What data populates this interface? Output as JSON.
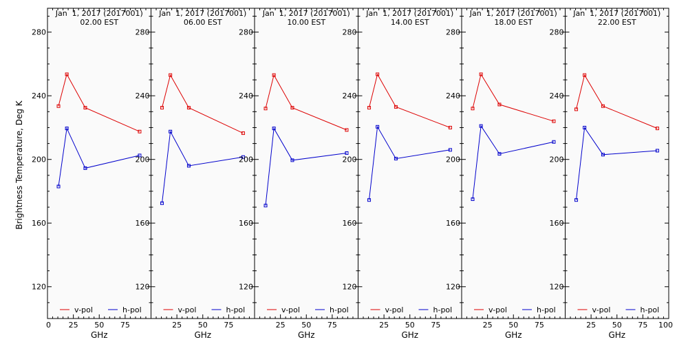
{
  "colors": {
    "background": "#ffffff",
    "panel_bg": "#fafafa",
    "v_pol": "#dd0000",
    "h_pol": "#0000cc",
    "axis": "#000000"
  },
  "ylabel": "Brightness Temperature, Deg K",
  "panels": [
    {
      "title_line1": "Jan  1, 2017 (2017001)",
      "title_line2": "02.00 EST",
      "xlabel": "GHz",
      "x_ticks": [
        "0",
        "25",
        "50",
        "75"
      ],
      "y_ticks": [
        "120",
        "160",
        "200",
        "240",
        "280"
      ],
      "legend": [
        "v-pol",
        "h-pol"
      ]
    },
    {
      "title_line1": "Jan  1, 2017 (2017001)",
      "title_line2": "06.00 EST",
      "xlabel": "GHz",
      "x_ticks": [
        "25",
        "50",
        "75"
      ],
      "y_ticks": [
        "120",
        "160",
        "200",
        "240",
        "280"
      ],
      "legend": [
        "v-pol",
        "h-pol"
      ]
    },
    {
      "title_line1": "Jan  1, 2017 (2017001)",
      "title_line2": "10.00 EST",
      "xlabel": "GHz",
      "x_ticks": [
        "25",
        "50",
        "75"
      ],
      "y_ticks": [
        "120",
        "160",
        "200",
        "240",
        "280"
      ],
      "legend": [
        "v-pol",
        "h-pol"
      ]
    },
    {
      "title_line1": "Jan  1, 2017 (2017001)",
      "title_line2": "14.00 EST",
      "xlabel": "GHz",
      "x_ticks": [
        "25",
        "50",
        "75"
      ],
      "y_ticks": [
        "120",
        "160",
        "200",
        "240",
        "280"
      ],
      "legend": [
        "v-pol",
        "h-pol"
      ]
    },
    {
      "title_line1": "Jan  1, 2017 (2017001)",
      "title_line2": "18.00 EST",
      "xlabel": "GHz",
      "x_ticks": [
        "25",
        "50",
        "75"
      ],
      "y_ticks": [
        "120",
        "160",
        "200",
        "240",
        "280"
      ],
      "legend": [
        "v-pol",
        "h-pol"
      ]
    },
    {
      "title_line1": "Jan  1, 2017 (2017001)",
      "title_line2": "22.00 EST",
      "xlabel": "GHz",
      "x_ticks": [
        "25",
        "50",
        "75",
        "100"
      ],
      "y_ticks": [
        "120",
        "160",
        "200",
        "240",
        "280"
      ],
      "legend": [
        "v-pol",
        "h-pol"
      ]
    }
  ],
  "chart_data": [
    {
      "type": "line",
      "title": "Jan  1, 2017 (2017001) 02.00 EST",
      "xlabel": "GHz",
      "ylabel": "Brightness Temperature, Deg K",
      "xlim": [
        0,
        100
      ],
      "ylim": [
        100,
        295
      ],
      "x": [
        10.65,
        18.7,
        36.5,
        89.0
      ],
      "series": [
        {
          "name": "v-pol",
          "values": [
            233.5,
            253.5,
            232.5,
            217.5
          ]
        },
        {
          "name": "h-pol",
          "values": [
            183.0,
            219.5,
            194.5,
            202.5
          ]
        }
      ]
    },
    {
      "type": "line",
      "title": "Jan  1, 2017 (2017001) 06.00 EST",
      "xlabel": "GHz",
      "ylabel": "Brightness Temperature, Deg K",
      "xlim": [
        0,
        100
      ],
      "ylim": [
        100,
        295
      ],
      "x": [
        10.65,
        18.7,
        36.5,
        89.0
      ],
      "series": [
        {
          "name": "v-pol",
          "values": [
            232.5,
            253.0,
            232.5,
            216.5
          ]
        },
        {
          "name": "h-pol",
          "values": [
            172.5,
            217.5,
            196.0,
            201.5
          ]
        }
      ]
    },
    {
      "type": "line",
      "title": "Jan  1, 2017 (2017001) 10.00 EST",
      "xlabel": "GHz",
      "ylabel": "Brightness Temperature, Deg K",
      "xlim": [
        0,
        100
      ],
      "ylim": [
        100,
        295
      ],
      "x": [
        10.65,
        18.7,
        36.5,
        89.0
      ],
      "series": [
        {
          "name": "v-pol",
          "values": [
            232.0,
            253.0,
            232.5,
            218.5
          ]
        },
        {
          "name": "h-pol",
          "values": [
            171.0,
            219.5,
            199.5,
            204.0
          ]
        }
      ]
    },
    {
      "type": "line",
      "title": "Jan  1, 2017 (2017001) 14.00 EST",
      "xlabel": "GHz",
      "ylabel": "Brightness Temperature, Deg K",
      "xlim": [
        0,
        100
      ],
      "ylim": [
        100,
        295
      ],
      "x": [
        10.65,
        18.7,
        36.5,
        89.0
      ],
      "series": [
        {
          "name": "v-pol",
          "values": [
            232.5,
            253.5,
            233.0,
            220.0
          ]
        },
        {
          "name": "h-pol",
          "values": [
            174.5,
            220.5,
            200.5,
            206.0
          ]
        }
      ]
    },
    {
      "type": "line",
      "title": "Jan  1, 2017 (2017001) 18.00 EST",
      "xlabel": "GHz",
      "ylabel": "Brightness Temperature, Deg K",
      "xlim": [
        0,
        100
      ],
      "ylim": [
        100,
        295
      ],
      "x": [
        10.65,
        18.7,
        36.5,
        89.0
      ],
      "series": [
        {
          "name": "v-pol",
          "values": [
            232.0,
            253.5,
            234.5,
            224.0
          ]
        },
        {
          "name": "h-pol",
          "values": [
            175.0,
            221.0,
            203.5,
            211.0
          ]
        }
      ]
    },
    {
      "type": "line",
      "title": "Jan  1, 2017 (2017001) 22.00 EST",
      "xlabel": "GHz",
      "ylabel": "Brightness Temperature, Deg K",
      "xlim": [
        0,
        100
      ],
      "ylim": [
        100,
        295
      ],
      "x": [
        10.65,
        18.7,
        36.5,
        89.0
      ],
      "series": [
        {
          "name": "v-pol",
          "values": [
            231.5,
            253.0,
            233.5,
            219.5
          ]
        },
        {
          "name": "h-pol",
          "values": [
            174.5,
            220.0,
            203.0,
            205.5
          ]
        }
      ]
    }
  ]
}
